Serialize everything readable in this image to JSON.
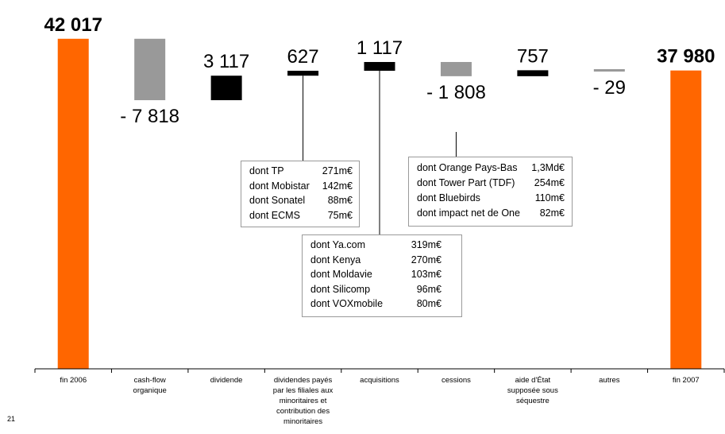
{
  "chart_data": {
    "type": "waterfall",
    "categories": [
      [
        "fin 2006"
      ],
      [
        "cash-flow",
        "organique"
      ],
      [
        "dividende"
      ],
      [
        "dividendes payés",
        "par les filiales aux",
        "minoritaires et",
        "contribution des",
        "minoritaires"
      ],
      [
        "acquisitions"
      ],
      [
        "cessions"
      ],
      [
        "aide d'État",
        "supposée sous",
        "séquestre"
      ],
      [
        "autres"
      ],
      [
        "fin 2007"
      ]
    ],
    "values": [
      42017,
      -7818,
      3117,
      627,
      1117,
      -1808,
      757,
      -29,
      37980
    ],
    "data_labels": [
      "42 017",
      "- 7 818",
      "3 117",
      "627",
      "1 117",
      "- 1 808",
      "757",
      "- 29",
      "37 980"
    ],
    "kinds": [
      "total",
      "decrease",
      "increase",
      "increase",
      "increase",
      "decrease",
      "increase",
      "decrease",
      "total"
    ],
    "ylim": [
      0,
      42500
    ],
    "colors": {
      "total": "#ff6600",
      "decrease": "#999999",
      "increase": "#000000"
    }
  },
  "notes": {
    "dividendes_filiales": [
      {
        "label": "dont TP",
        "value": "271m€"
      },
      {
        "label": "dont Mobistar",
        "value": "142m€"
      },
      {
        "label": "dont Sonatel",
        "value": "88m€"
      },
      {
        "label": "dont ECMS",
        "value": "75m€"
      }
    ],
    "acquisitions": [
      {
        "label": "dont Ya.com",
        "value": "319m€"
      },
      {
        "label": "dont Kenya",
        "value": "270m€"
      },
      {
        "label": "dont Moldavie",
        "value": "103m€"
      },
      {
        "label": "dont Silicomp",
        "value": "96m€"
      },
      {
        "label": "dont VOXmobile",
        "value": "80m€"
      }
    ],
    "cessions": [
      {
        "label": "dont Orange Pays-Bas",
        "value": "1,3Md€"
      },
      {
        "label": "dont Tower Part (TDF)",
        "value": "254m€"
      },
      {
        "label": "dont Bluebirds",
        "value": "110m€"
      },
      {
        "label": "dont impact net de One",
        "value": "82m€"
      }
    ]
  },
  "page_number": "21"
}
